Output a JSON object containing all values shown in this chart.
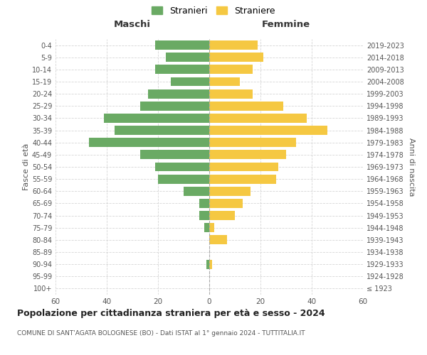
{
  "age_groups": [
    "100+",
    "95-99",
    "90-94",
    "85-89",
    "80-84",
    "75-79",
    "70-74",
    "65-69",
    "60-64",
    "55-59",
    "50-54",
    "45-49",
    "40-44",
    "35-39",
    "30-34",
    "25-29",
    "20-24",
    "15-19",
    "10-14",
    "5-9",
    "0-4"
  ],
  "birth_years": [
    "≤ 1923",
    "1924-1928",
    "1929-1933",
    "1934-1938",
    "1939-1943",
    "1944-1948",
    "1949-1953",
    "1954-1958",
    "1959-1963",
    "1964-1968",
    "1969-1973",
    "1974-1978",
    "1979-1983",
    "1984-1988",
    "1989-1993",
    "1994-1998",
    "1999-2003",
    "2004-2008",
    "2009-2013",
    "2014-2018",
    "2019-2023"
  ],
  "males": [
    0,
    0,
    1,
    0,
    0,
    2,
    4,
    4,
    10,
    20,
    21,
    27,
    47,
    37,
    41,
    27,
    24,
    15,
    21,
    17,
    21
  ],
  "females": [
    0,
    0,
    1,
    0,
    7,
    2,
    10,
    13,
    16,
    26,
    27,
    30,
    34,
    46,
    38,
    29,
    17,
    12,
    17,
    21,
    19
  ],
  "male_color": "#6aaa64",
  "female_color": "#f5c842",
  "title": "Popolazione per cittadinanza straniera per età e sesso - 2024",
  "subtitle": "COMUNE DI SANT'AGATA BOLOGNESE (BO) - Dati ISTAT al 1° gennaio 2024 - TUTTITALIA.IT",
  "xlabel_left": "Maschi",
  "xlabel_right": "Femmine",
  "ylabel_left": "Fasce di età",
  "ylabel_right": "Anni di nascita",
  "legend_stranieri": "Stranieri",
  "legend_straniere": "Straniere",
  "xlim": 60,
  "background_color": "#ffffff",
  "grid_color": "#cccccc"
}
